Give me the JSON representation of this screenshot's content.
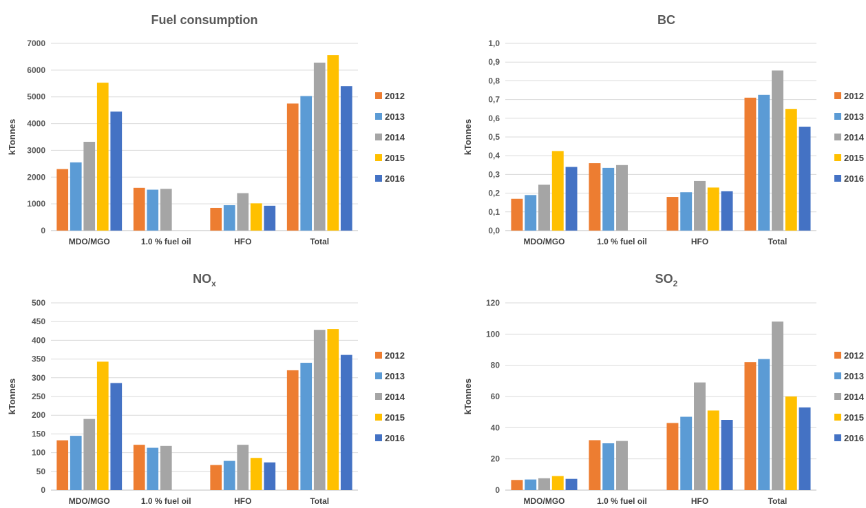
{
  "colors": {
    "2012": "#ED7D31",
    "2013": "#5B9BD5",
    "2014": "#A5A5A5",
    "2015": "#FFC000",
    "2016": "#4472C4"
  },
  "chart_data": [
    {
      "type": "bar",
      "title": "Fuel consumption",
      "ylabel": "kTonnes",
      "categories": [
        "MDO/MGO",
        "1.0 % fuel oil",
        "HFO",
        "Total"
      ],
      "ylim": [
        0,
        7000
      ],
      "yticks": [
        "0",
        "1000",
        "2000",
        "3000",
        "4000",
        "5000",
        "6000",
        "7000"
      ],
      "ytick_values": [
        0,
        1000,
        2000,
        3000,
        4000,
        5000,
        6000,
        7000
      ],
      "legend_position": "right",
      "grid": true,
      "series": [
        {
          "name": "2012",
          "values": [
            2300,
            1600,
            850,
            4750
          ]
        },
        {
          "name": "2013",
          "values": [
            2550,
            1530,
            950,
            5030
          ]
        },
        {
          "name": "2014",
          "values": [
            3320,
            1560,
            1400,
            6280
          ]
        },
        {
          "name": "2015",
          "values": [
            5530,
            null,
            1020,
            6560
          ]
        },
        {
          "name": "2016",
          "values": [
            4450,
            null,
            930,
            5400
          ]
        }
      ]
    },
    {
      "type": "bar",
      "title": "BC",
      "ylabel": "kTonnes",
      "categories": [
        "MDO/MGO",
        "1.0 % fuel oil",
        "HFO",
        "Total"
      ],
      "ylim": [
        0,
        1.0
      ],
      "yticks": [
        "0,0",
        "0,1",
        "0,2",
        "0,3",
        "0,4",
        "0,5",
        "0,6",
        "0,7",
        "0,8",
        "0,9",
        "1,0"
      ],
      "ytick_values": [
        0,
        0.1,
        0.2,
        0.3,
        0.4,
        0.5,
        0.6,
        0.7,
        0.8,
        0.9,
        1.0
      ],
      "legend_position": "right",
      "grid": true,
      "series": [
        {
          "name": "2012",
          "values": [
            0.17,
            0.36,
            0.18,
            0.71
          ]
        },
        {
          "name": "2013",
          "values": [
            0.19,
            0.335,
            0.205,
            0.725
          ]
        },
        {
          "name": "2014",
          "values": [
            0.245,
            0.35,
            0.265,
            0.855
          ]
        },
        {
          "name": "2015",
          "values": [
            0.425,
            null,
            0.23,
            0.65
          ]
        },
        {
          "name": "2016",
          "values": [
            0.34,
            null,
            0.21,
            0.555
          ]
        }
      ]
    },
    {
      "type": "bar",
      "title": "NO",
      "title_sub": "x",
      "ylabel": "kTonnes",
      "categories": [
        "MDO/MGO",
        "1.0 % fuel oil",
        "HFO",
        "Total"
      ],
      "ylim": [
        0,
        500
      ],
      "yticks": [
        "0",
        "50",
        "100",
        "150",
        "200",
        "250",
        "300",
        "350",
        "400",
        "450",
        "500"
      ],
      "ytick_values": [
        0,
        50,
        100,
        150,
        200,
        250,
        300,
        350,
        400,
        450,
        500
      ],
      "legend_position": "right",
      "grid": true,
      "series": [
        {
          "name": "2012",
          "values": [
            133,
            121,
            67,
            320
          ]
        },
        {
          "name": "2013",
          "values": [
            145,
            113,
            78,
            340
          ]
        },
        {
          "name": "2014",
          "values": [
            190,
            118,
            121,
            428
          ]
        },
        {
          "name": "2015",
          "values": [
            343,
            null,
            86,
            430
          ]
        },
        {
          "name": "2016",
          "values": [
            286,
            null,
            74,
            361
          ]
        }
      ]
    },
    {
      "type": "bar",
      "title": "SO",
      "title_sub": "2",
      "ylabel": "kTonnes",
      "categories": [
        "MDO/MGO",
        "1.0 % fuel oil",
        "HFO",
        "Total"
      ],
      "ylim": [
        0,
        120
      ],
      "yticks": [
        "0",
        "20",
        "40",
        "60",
        "80",
        "100",
        "120"
      ],
      "ytick_values": [
        0,
        20,
        40,
        60,
        80,
        100,
        120
      ],
      "legend_position": "right",
      "grid": true,
      "series": [
        {
          "name": "2012",
          "values": [
            6.5,
            32,
            43,
            82
          ]
        },
        {
          "name": "2013",
          "values": [
            6.8,
            30,
            47,
            84
          ]
        },
        {
          "name": "2014",
          "values": [
            7.6,
            31.5,
            69,
            108
          ]
        },
        {
          "name": "2015",
          "values": [
            9,
            null,
            51,
            60
          ]
        },
        {
          "name": "2016",
          "values": [
            7.2,
            null,
            45,
            53
          ]
        }
      ]
    }
  ]
}
